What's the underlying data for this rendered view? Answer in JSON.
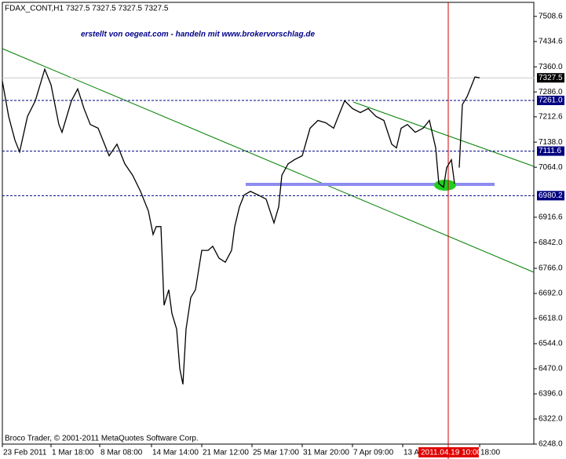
{
  "chart_data": {
    "type": "line",
    "title": "FDAX_CONT,H1  7327.5 7327.5 7327.5 7327.5",
    "subtitle": "erstellt von oegeat.com - handeln mit www.brokervorschlag.de",
    "footer": "Broco Trader, © 2001-2011 MetaQuotes Software Corp.",
    "cursor_label": "2011.04.19 10:00",
    "x": [
      0,
      4,
      8,
      11,
      16,
      21,
      27,
      31,
      36,
      38,
      44,
      48,
      52,
      56,
      61,
      66,
      68,
      73,
      78,
      83,
      88,
      93,
      96,
      98,
      101,
      103,
      106,
      108,
      111,
      113,
      115,
      117,
      120,
      123,
      127,
      131,
      134,
      138,
      142,
      146,
      148,
      151,
      154,
      158,
      163,
      168,
      173,
      176,
      178,
      182,
      186,
      191,
      196,
      201,
      206,
      211,
      214,
      218,
      223,
      228,
      233,
      238,
      243,
      248,
      251,
      254,
      258,
      263,
      268,
      272,
      276,
      278,
      281,
      283,
      286,
      288,
      290,
      291,
      293,
      296,
      298,
      301,
      304
    ],
    "series": [
      {
        "name": "FDAX_CONT,H1",
        "color": "#000000",
        "values": [
          7318,
          7214,
          7144,
          7109,
          7214,
          7260,
          7353,
          7307,
          7190,
          7167,
          7260,
          7295,
          7237,
          7190,
          7179,
          7121,
          7098,
          7132,
          7074,
          7040,
          6993,
          6935,
          6866,
          6889,
          6889,
          6657,
          6703,
          6633,
          6587,
          6471,
          6424,
          6587,
          6680,
          6703,
          6819,
          6819,
          6831,
          6796,
          6784,
          6819,
          6889,
          6947,
          6982,
          6993,
          6982,
          6970,
          6900,
          6947,
          7040,
          7074,
          7086,
          7098,
          7179,
          7202,
          7195,
          7179,
          7214,
          7260,
          7237,
          7225,
          7237,
          7214,
          7202,
          7132,
          7121,
          7179,
          7190,
          7167,
          7179,
          7202,
          7121,
          7016,
          7005,
          7063,
          7086,
          7016,
          null,
          7063,
          7249,
          7272,
          7295,
          7330,
          7327.5
        ]
      }
    ],
    "xlim": [
      0,
      339
    ],
    "xticks": [
      {
        "value": 0,
        "label": "23 Feb 2011"
      },
      {
        "value": 31,
        "label": "1 Mar 18:00"
      },
      {
        "value": 62,
        "label": "8 Mar 08:00"
      },
      {
        "value": 95,
        "label": "14 Mar 14:00"
      },
      {
        "value": 127,
        "label": "21 Mar 12:00"
      },
      {
        "value": 159,
        "label": "25 Mar 17:00"
      },
      {
        "value": 191,
        "label": "31 Mar 20:00"
      },
      {
        "value": 223,
        "label": "7 Apr 09:00"
      },
      {
        "value": 255,
        "label": "13 A"
      },
      {
        "value": 304,
        "label": "18:00"
      }
    ],
    "ylim": [
      6248,
      7550
    ],
    "yticks": [
      7508.6,
      7434.6,
      {
        "value": 7360,
        "label": "7360.0"
      },
      {
        "value": 7286,
        "label": "7286.0"
      },
      7212.6,
      {
        "value": 7138,
        "label": "7138.0"
      },
      {
        "value": 7064,
        "label": "7064.0"
      },
      6916.6,
      {
        "value": 6842,
        "label": "6842.0"
      },
      {
        "value": 6766,
        "label": "6766.0"
      },
      {
        "value": 6692,
        "label": "6692.0"
      },
      {
        "value": 6618,
        "label": "6618.0"
      },
      {
        "value": 6544,
        "label": "6544.0"
      },
      {
        "value": 6470,
        "label": "6470.0"
      },
      {
        "value": 6396,
        "label": "6396.0"
      },
      {
        "value": 6322,
        "label": "6322.0"
      },
      {
        "value": 6248,
        "label": "6248.0"
      }
    ],
    "price_levels": [
      7327.5,
      {
        "value": 7261,
        "label": "7261.0"
      },
      7111.6,
      6980.2
    ]
  }
}
